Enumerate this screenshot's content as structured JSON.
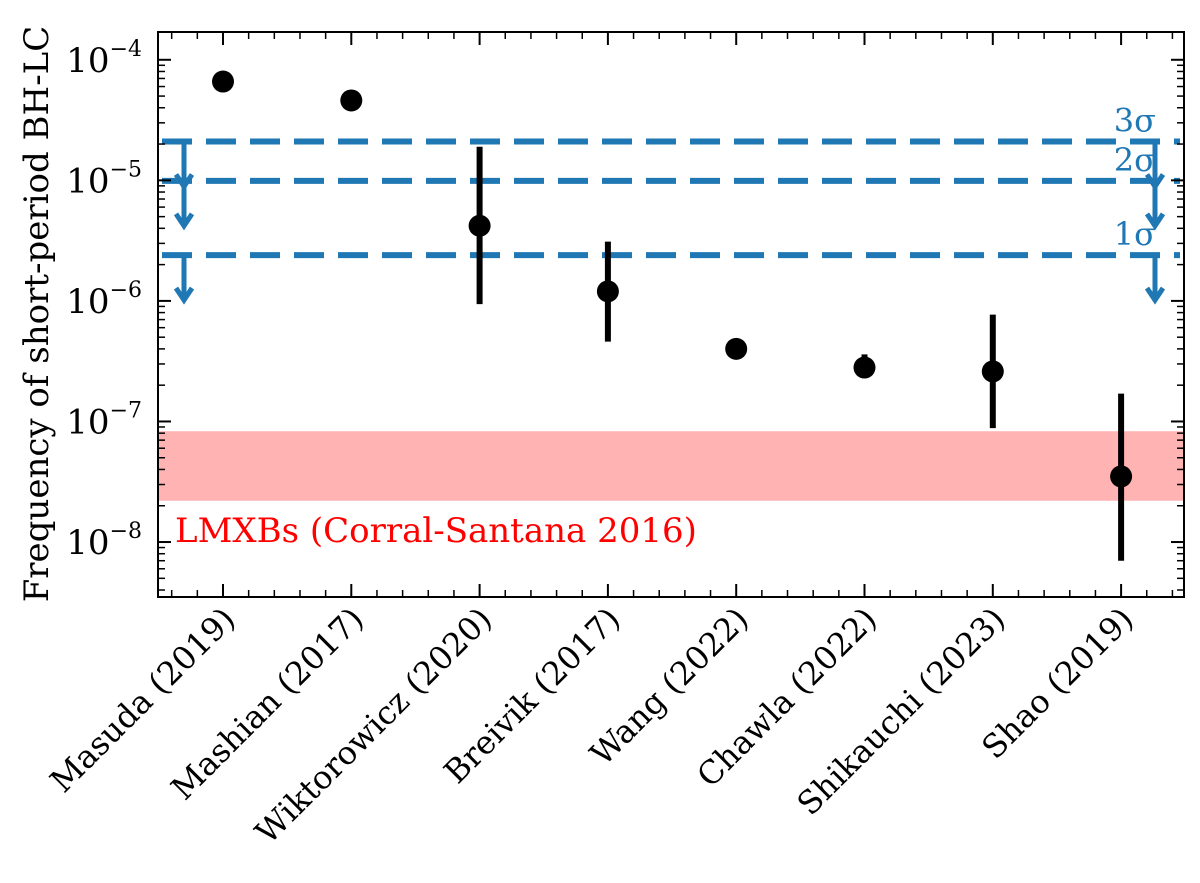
{
  "chart_data": {
    "type": "scatter",
    "ylabel": "Frequency of short-period BH-LC",
    "yscale": "log",
    "ylim": [
      3.5e-09,
      0.00017
    ],
    "y_ticks": [
      {
        "value": 1e-08,
        "base": "10",
        "exp": "−8"
      },
      {
        "value": 1e-07,
        "base": "10",
        "exp": "−7"
      },
      {
        "value": 1e-06,
        "base": "10",
        "exp": "−6"
      },
      {
        "value": 1e-05,
        "base": "10",
        "exp": "−5"
      },
      {
        "value": 0.0001,
        "base": "10",
        "exp": "−4"
      }
    ],
    "categories": [
      "Masuda (2019)",
      "Mashian (2017)",
      "Wiktorowicz (2020)",
      "Breivik (2017)",
      "Wang (2022)",
      "Chawla (2022)",
      "Shikauchi (2023)",
      "Shao (2019)"
    ],
    "points": [
      {
        "value": 6.6e-05,
        "err_low": null,
        "err_high": null
      },
      {
        "value": 4.6e-05,
        "err_low": null,
        "err_high": null
      },
      {
        "value": 4.2e-06,
        "err_low": 9.4e-07,
        "err_high": 1.9e-05
      },
      {
        "value": 1.2e-06,
        "err_low": 4.6e-07,
        "err_high": 3.1e-06
      },
      {
        "value": 4e-07,
        "err_low": null,
        "err_high": null
      },
      {
        "value": 2.8e-07,
        "err_low": 2.3e-07,
        "err_high": 3.6e-07
      },
      {
        "value": 2.6e-07,
        "err_low": 8.8e-08,
        "err_high": 7.7e-07
      },
      {
        "value": 3.5e-08,
        "err_low": 7e-09,
        "err_high": 1.7e-07
      }
    ],
    "band": {
      "label": "LMXBs (Corral-Santana 2016)",
      "low": 2.2e-08,
      "high": 8.3e-08,
      "color": "#ffb3b3",
      "label_color": "#ff0000"
    },
    "limits": [
      {
        "label": "1σ",
        "value": 2.4e-06
      },
      {
        "label": "2σ",
        "value": 9.9e-06
      },
      {
        "label": "3σ",
        "value": 2.1e-05
      }
    ],
    "colors": {
      "points": "#000000",
      "limits": "#1f77b4"
    },
    "grid": false,
    "legend": "none"
  }
}
